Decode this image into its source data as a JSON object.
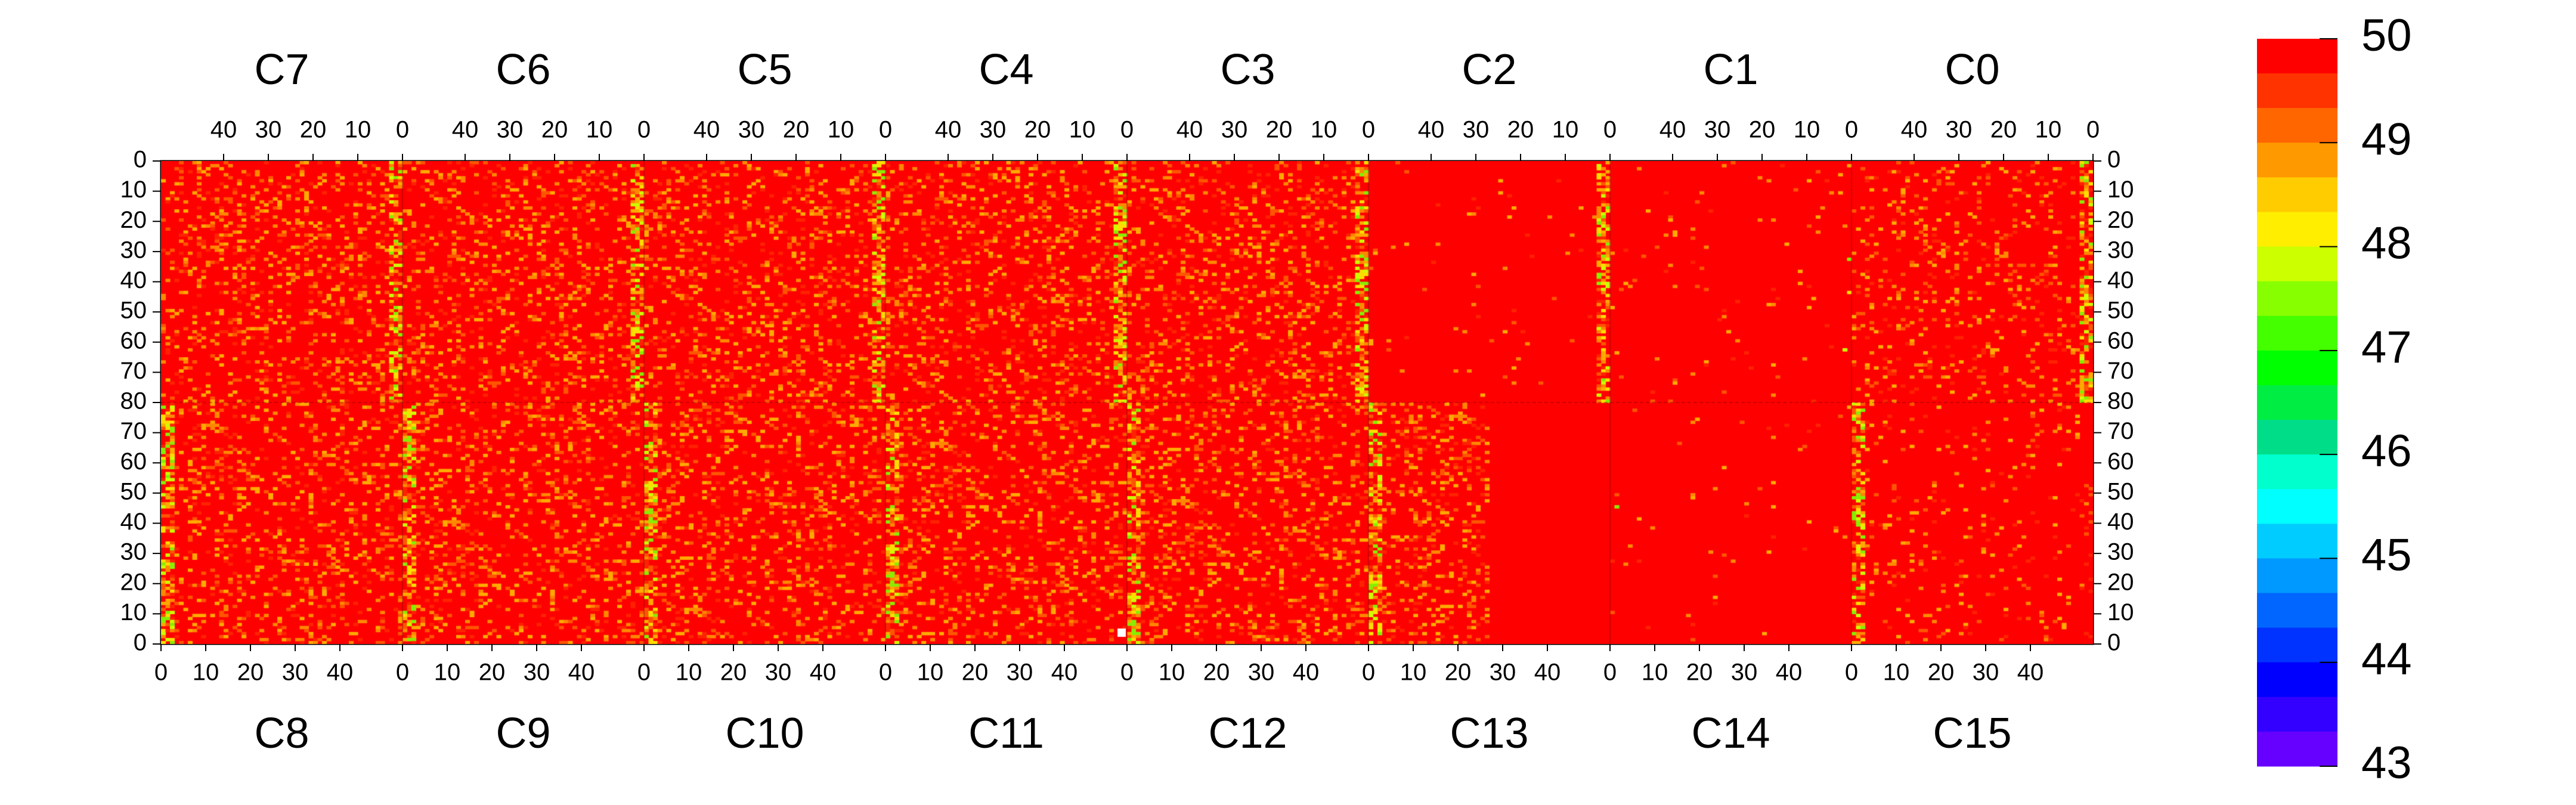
{
  "chart_data": {
    "type": "heatmap",
    "top_panels": [
      "C7",
      "C6",
      "C5",
      "C4",
      "C3",
      "C2",
      "C1",
      "C0"
    ],
    "bottom_panels": [
      "C8",
      "C9",
      "C10",
      "C11",
      "C12",
      "C13",
      "C14",
      "C15"
    ],
    "panel_columns": 54,
    "panel_rows_per_half": 80,
    "x_ticks_top": [
      "40",
      "30",
      "20",
      "10",
      "0"
    ],
    "x_ticks_bottom": [
      "0",
      "10",
      "20",
      "30",
      "40"
    ],
    "y_ticks_top_half": [
      "0",
      "10",
      "20",
      "30",
      "40",
      "50",
      "60",
      "70",
      "80"
    ],
    "y_ticks_bottom_half": [
      "70",
      "60",
      "50",
      "40",
      "30",
      "20",
      "10",
      "0"
    ],
    "color_scale": {
      "min": 43,
      "max": 50,
      "tick_labels": [
        "50",
        "49",
        "48",
        "47",
        "46",
        "45",
        "44",
        "43"
      ],
      "colors": [
        "#ff0000",
        "#ff3300",
        "#ff6600",
        "#ff9900",
        "#ffcc00",
        "#ffee00",
        "#ccff00",
        "#88ff00",
        "#44ff00",
        "#00ff00",
        "#00ee44",
        "#00dd88",
        "#00ffcc",
        "#00ffff",
        "#00ccff",
        "#0099ff",
        "#0066ff",
        "#0033ff",
        "#0000ff",
        "#3300ff",
        "#6600ff"
      ]
    },
    "dominant_value": 50,
    "columns_with_lower_values": [
      "C7/C8 col 0",
      "C6/C9 col 0",
      "C5/C10 col 0",
      "C4/C11 col 0",
      "C3/C12 col 0",
      "C2/C13 col 0",
      "C0/C15 col 0"
    ],
    "uniform_regions": [
      "C2 cols 0-24",
      "C1",
      "C13 cols 25-53",
      "C14"
    ]
  }
}
